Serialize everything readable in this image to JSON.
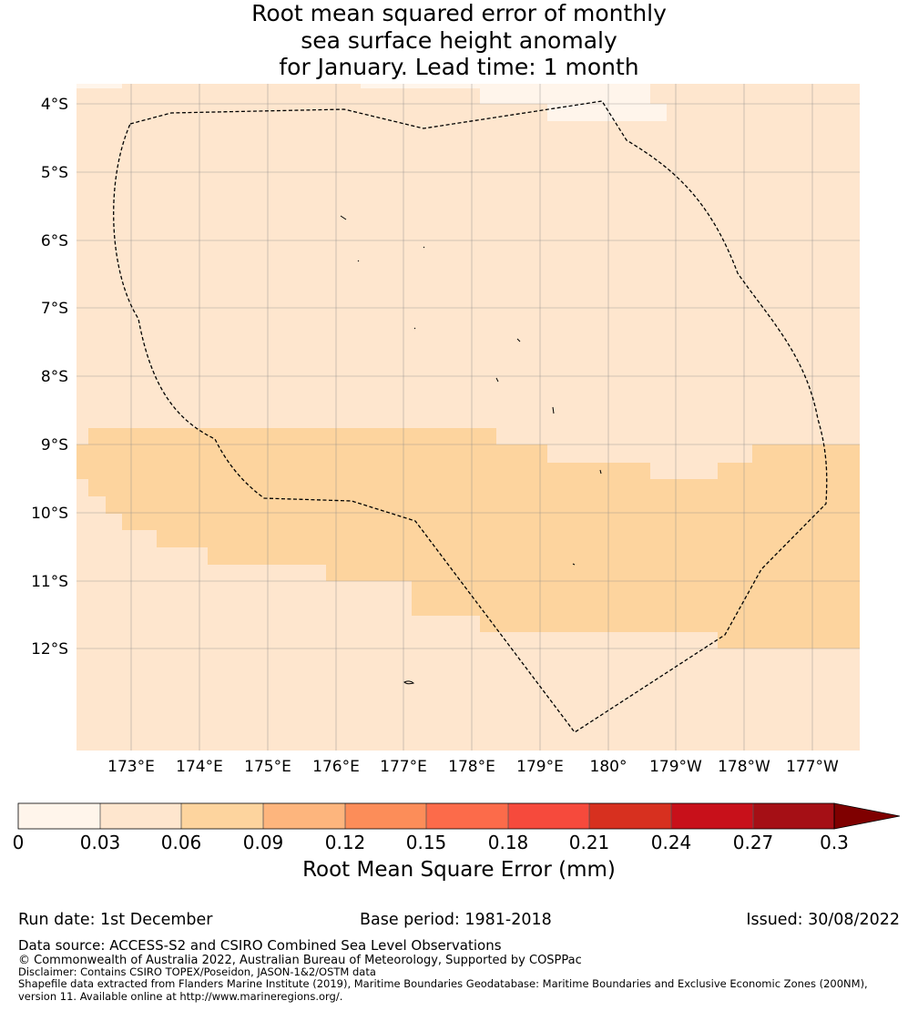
{
  "title": {
    "line1": "Root mean squared error of monthly",
    "line2": "sea surface height anomaly",
    "line3": "for January. Lead time: 1 month"
  },
  "map": {
    "lat_ticks": [
      "4°S",
      "5°S",
      "6°S",
      "7°S",
      "8°S",
      "9°S",
      "10°S",
      "11°S",
      "12°S"
    ],
    "lon_ticks": [
      "173°E",
      "174°E",
      "175°E",
      "176°E",
      "177°E",
      "178°E",
      "179°E",
      "180°",
      "179°W",
      "178°W",
      "177°W"
    ],
    "lat_range": [
      -13.5,
      -3.7
    ],
    "lon_range": [
      172.2,
      183.7
    ],
    "colors": {
      "bin_0_003": "#fff5eb",
      "bin_003_006": "#fee6ce",
      "bin_006_009": "#fdd49e",
      "boundary": "#000000",
      "grid": "#888888"
    }
  },
  "colorbar": {
    "ticks": [
      "0",
      "0.03",
      "0.06",
      "0.09",
      "0.12",
      "0.15",
      "0.18",
      "0.21",
      "0.24",
      "0.27",
      "0.3"
    ],
    "colors": [
      "#fff5eb",
      "#fee6ce",
      "#fdd49e",
      "#fdb57d",
      "#fc8d59",
      "#fc6b4a",
      "#f64a3c",
      "#d7301f",
      "#c8101a",
      "#a50f15",
      "#7f0000"
    ],
    "label": "Root Mean Square Error (mm)"
  },
  "footer": {
    "run_date": "Run date: 1st December",
    "base_period": "Base period: 1981-2018",
    "issued": "Issued: 30/08/2022",
    "data_source": "Data source: ACCESS-S2 and CSIRO Combined Sea Level Observations",
    "copyright": "© Commonwealth of Australia 2022, Australian Bureau of Meteorology, Supported by COSPPac",
    "disclaimer": "Disclaimer: Contains CSIRO TOPEX/Poseidon, JASON-1&2/OSTM data",
    "shapefile_line1": "Shapefile data extracted from Flanders Marine Institute (2019), Maritime Boundaries Geodatabase: Maritime Boundaries and Exclusive Economic Zones (200NM),",
    "shapefile_line2": "version 11. Available online at http://www.marineregions.org/."
  }
}
